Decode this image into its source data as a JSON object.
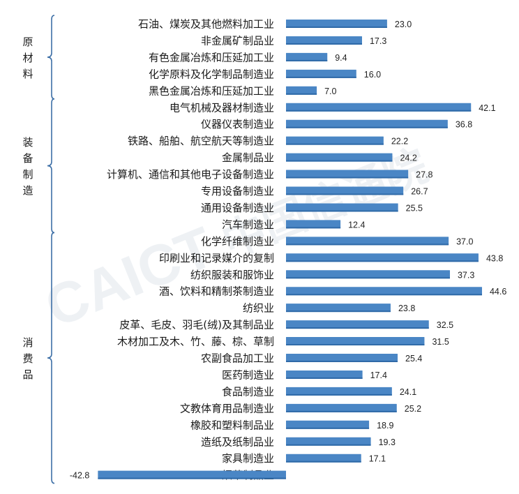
{
  "chart_data": {
    "type": "bar",
    "orientation": "horizontal",
    "watermark": "CAICT 中国信通院",
    "groups": [
      {
        "name": "原材料",
        "categories": [
          {
            "label": "石油、煤炭及其他燃料加工业",
            "value": 23.0,
            "text": "23.0"
          },
          {
            "label": "非金属矿制品业",
            "value": 17.3,
            "text": "17.3"
          },
          {
            "label": "有色金属冶炼和压延加工业",
            "value": 9.4,
            "text": "9.4"
          },
          {
            "label": "化学原料及化学制品制造业",
            "value": 16.0,
            "text": "16.0"
          },
          {
            "label": "黑色金属冶炼和压延加工业",
            "value": 7.0,
            "text": "7.0"
          }
        ]
      },
      {
        "name": "装备制造",
        "categories": [
          {
            "label": "电气机械及器材制造业",
            "value": 42.1,
            "text": "42.1"
          },
          {
            "label": "仪器仪表制造业",
            "value": 36.8,
            "text": "36.8"
          },
          {
            "label": "铁路、船舶、航空航天等制造业",
            "value": 22.2,
            "text": "22.2"
          },
          {
            "label": "金属制品业",
            "value": 24.2,
            "text": "24.2"
          },
          {
            "label": "计算机、通信和其他电子设备制造业",
            "value": 27.8,
            "text": "27.8"
          },
          {
            "label": "专用设备制造业",
            "value": 26.7,
            "text": "26.7"
          },
          {
            "label": "通用设备制造业",
            "value": 25.5,
            "text": "25.5"
          },
          {
            "label": "汽车制造业",
            "value": 12.4,
            "text": "12.4"
          }
        ]
      },
      {
        "name": "消费品",
        "categories": [
          {
            "label": "化学纤维制造业",
            "value": 37.0,
            "text": "37.0"
          },
          {
            "label": "印刷业和记录媒介的复制",
            "value": 43.8,
            "text": "43.8"
          },
          {
            "label": "纺织服装和服饰业",
            "value": 37.3,
            "text": "37.3"
          },
          {
            "label": "酒、饮料和精制茶制造业",
            "value": 44.6,
            "text": "44.6"
          },
          {
            "label": "纺织业",
            "value": 23.8,
            "text": "23.8"
          },
          {
            "label": "皮革、毛皮、羽毛(绒)及其制品业",
            "value": 32.5,
            "text": "32.5"
          },
          {
            "label": "木材加工及木、竹、藤、棕、草制",
            "value": 31.5,
            "text": "31.5"
          },
          {
            "label": "农副食品加工业",
            "value": 25.4,
            "text": "25.4"
          },
          {
            "label": "医药制造业",
            "value": 17.4,
            "text": "17.4"
          },
          {
            "label": "食品制造业",
            "value": 24.1,
            "text": "24.1"
          },
          {
            "label": "文教体育用品制造业",
            "value": 25.2,
            "text": "25.2"
          },
          {
            "label": "橡胶和塑料制品业",
            "value": 18.9,
            "text": "18.9"
          },
          {
            "label": "造纸及纸制品业",
            "value": 19.3,
            "text": "19.3"
          },
          {
            "label": "家具制造业",
            "value": 17.1,
            "text": "17.1"
          },
          {
            "label": "烟草制品业",
            "value": -42.8,
            "text": "-42.8"
          }
        ]
      }
    ],
    "bar_color": "#4a86c5",
    "xlim": [
      -42.8,
      46
    ]
  }
}
